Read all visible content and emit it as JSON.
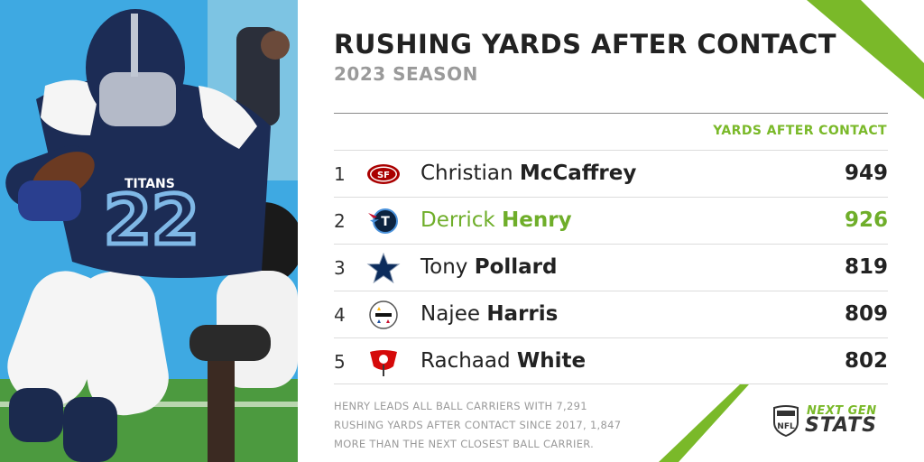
{
  "header": {
    "title": "RUSHING YARDS AFTER CONTACT",
    "subtitle": "2023 SEASON",
    "column_header": "YARDS AFTER CONTACT"
  },
  "colors": {
    "accent_green": "#7ab929",
    "highlight_green": "#6fae2a",
    "text_dark": "#222222",
    "text_gray": "#9a9a9a"
  },
  "rows": [
    {
      "rank": "1",
      "first": "Christian",
      "last": "McCaffrey",
      "value": "949",
      "team_icon": "49ers-logo-icon",
      "highlight": false
    },
    {
      "rank": "2",
      "first": "Derrick",
      "last": "Henry",
      "value": "926",
      "team_icon": "titans-logo-icon",
      "highlight": true
    },
    {
      "rank": "3",
      "first": "Tony",
      "last": "Pollard",
      "value": "819",
      "team_icon": "cowboys-star-icon",
      "highlight": false
    },
    {
      "rank": "4",
      "first": "Najee",
      "last": "Harris",
      "value": "809",
      "team_icon": "steelers-logo-icon",
      "highlight": false
    },
    {
      "rank": "5",
      "first": "Rachaad",
      "last": "White",
      "value": "802",
      "team_icon": "buccaneers-flag-icon",
      "highlight": false
    }
  ],
  "footnote": {
    "line1": "HENRY LEADS ALL BALL CARRIERS WITH 7,291",
    "line2": "RUSHING YARDS AFTER CONTACT SINCE 2017, 1,847",
    "line3": "MORE THAN THE NEXT CLOSEST BALL CARRIER."
  },
  "brand": {
    "line1": "NEXT GEN",
    "line2": "STATS",
    "logo_text": "NFL"
  },
  "photo": {
    "jersey_number": "22",
    "jersey_text": "TITANS"
  }
}
